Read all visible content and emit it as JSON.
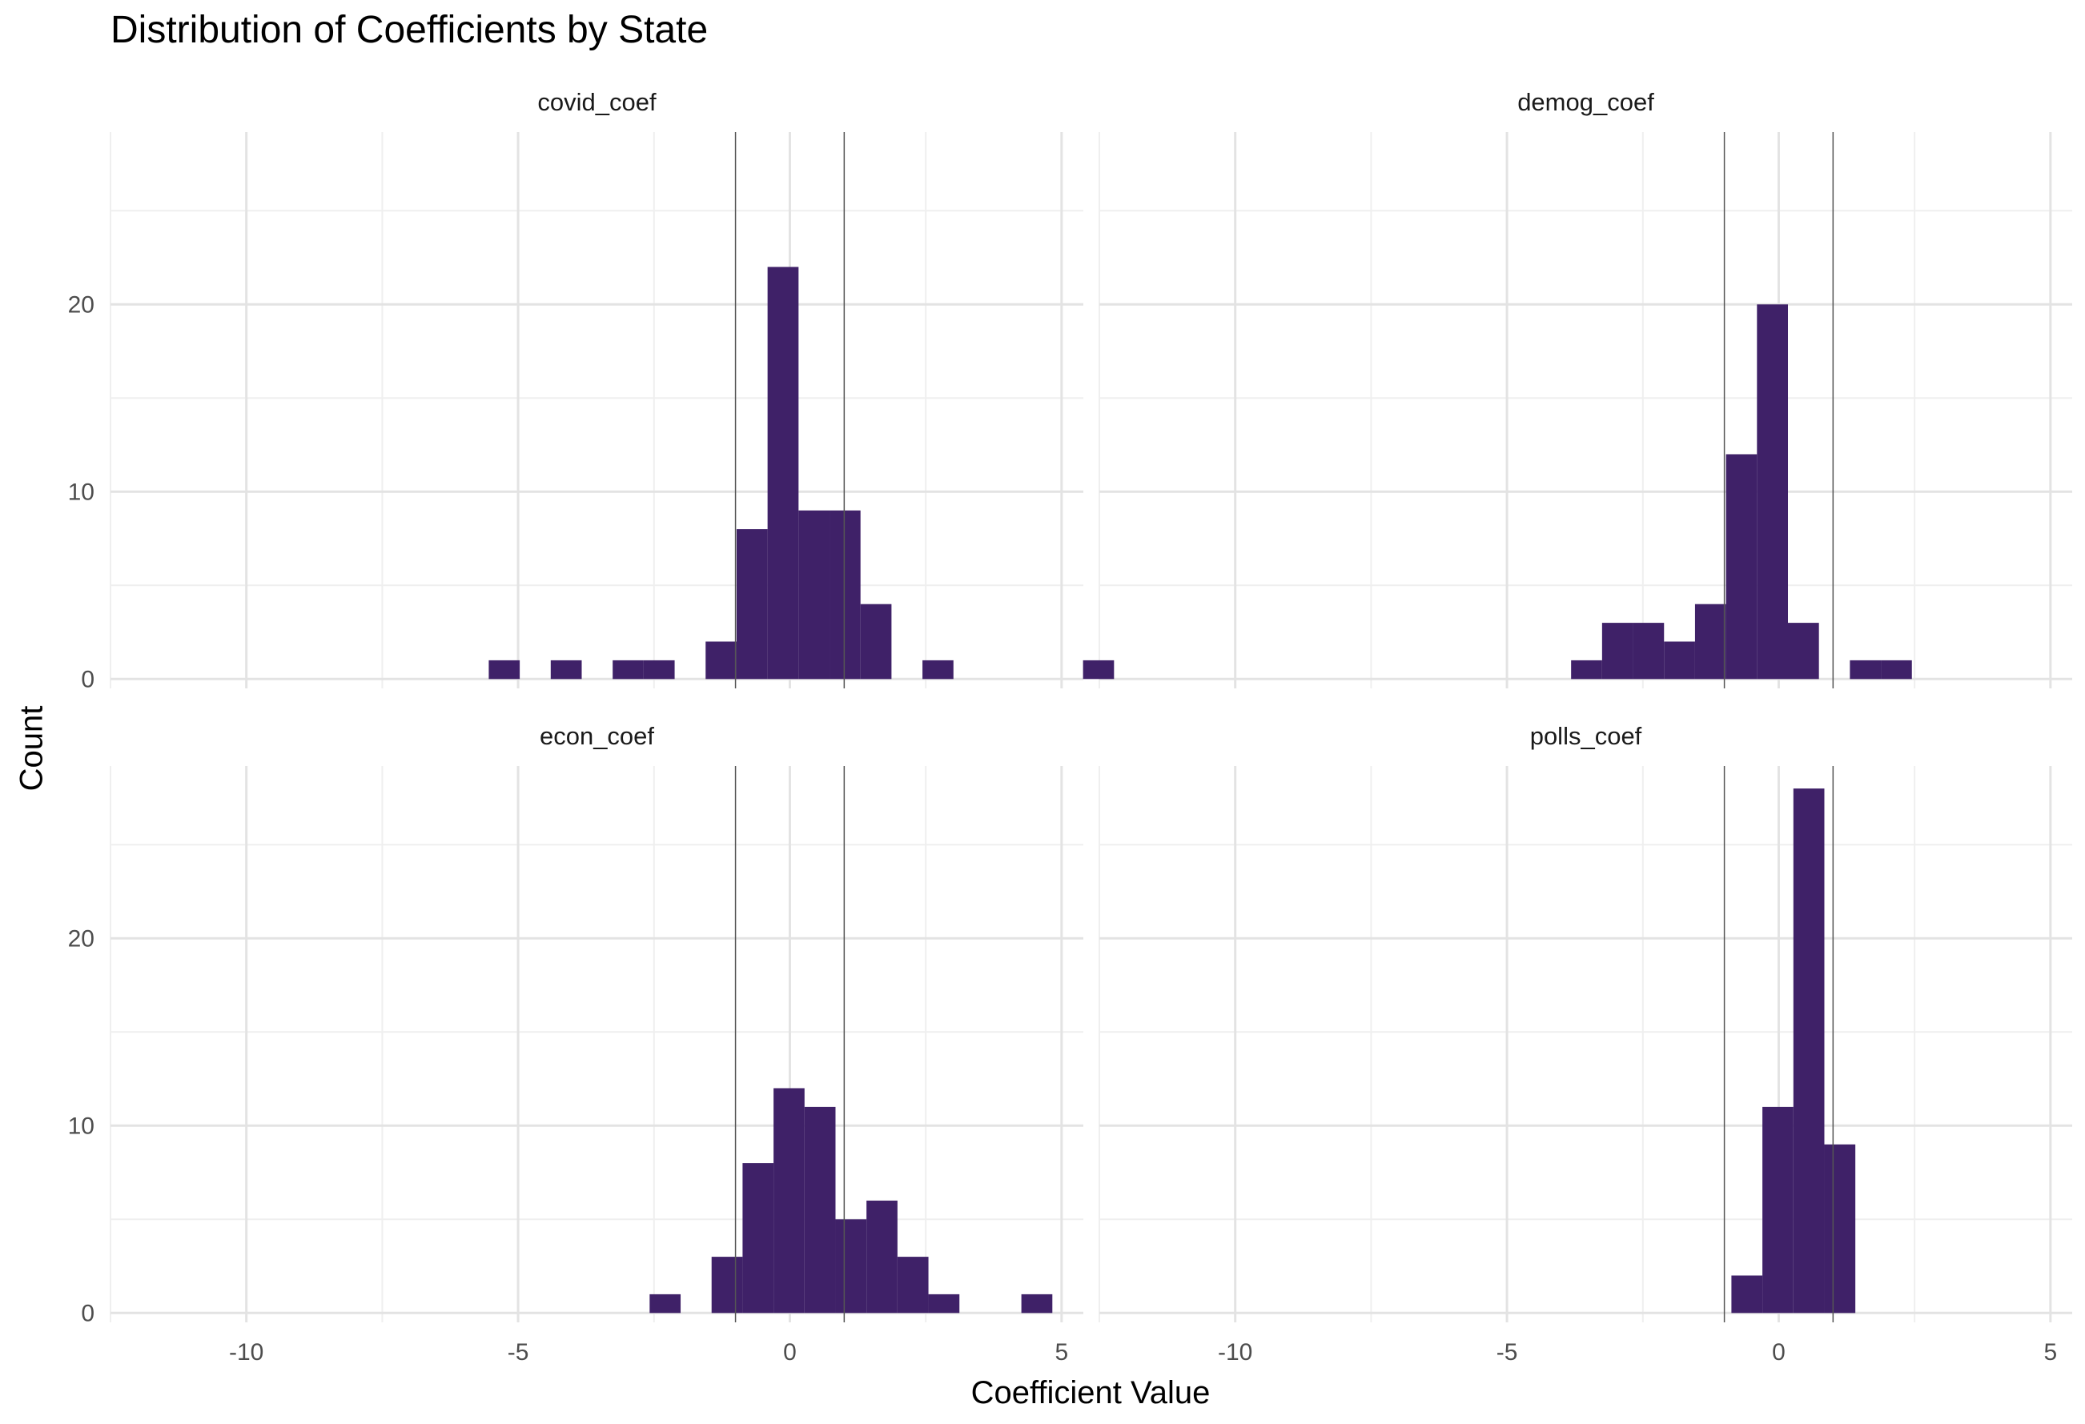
{
  "title": "Distribution of Coefficients by State",
  "xlabel": "Coefficient Value",
  "ylabel": "Count",
  "colors": {
    "bar": "#3f2168",
    "grid_major": "#e3e3e3",
    "grid_minor": "#efefef",
    "vline": "#555555"
  },
  "chart_data": {
    "type": "bar",
    "subtype": "histogram",
    "title": "Distribution of Coefficients by State",
    "xlabel": "Coefficient Value",
    "ylabel": "Count",
    "xlim": [
      -12.5,
      5.4
    ],
    "ylim": [
      -0.5,
      29.2
    ],
    "x_ticks": [
      -10,
      -5,
      0,
      5
    ],
    "y_ticks": [
      0,
      10,
      20
    ],
    "bin_width": 0.57,
    "vlines": [
      -1,
      1
    ],
    "grid": true,
    "legend": "none",
    "facets": [
      {
        "name": "covid_coef",
        "bins": [
          {
            "x0": -5.54,
            "x1": -4.97,
            "count": 1
          },
          {
            "x0": -4.4,
            "x1": -3.83,
            "count": 1
          },
          {
            "x0": -3.26,
            "x1": -2.69,
            "count": 1
          },
          {
            "x0": -2.69,
            "x1": -2.12,
            "count": 1
          },
          {
            "x0": -1.55,
            "x1": -0.98,
            "count": 2
          },
          {
            "x0": -0.98,
            "x1": -0.41,
            "count": 8
          },
          {
            "x0": -0.41,
            "x1": 0.16,
            "count": 22
          },
          {
            "x0": 0.16,
            "x1": 0.73,
            "count": 9
          },
          {
            "x0": 0.73,
            "x1": 1.3,
            "count": 9
          },
          {
            "x0": 1.3,
            "x1": 1.87,
            "count": 4
          },
          {
            "x0": 2.44,
            "x1": 3.01,
            "count": 1
          }
        ]
      },
      {
        "name": "demog_coef",
        "bins": [
          {
            "x0": -12.8,
            "x1": -12.23,
            "count": 1
          },
          {
            "x0": -3.82,
            "x1": -3.25,
            "count": 1
          },
          {
            "x0": -3.25,
            "x1": -2.68,
            "count": 3
          },
          {
            "x0": -2.68,
            "x1": -2.11,
            "count": 3
          },
          {
            "x0": -2.11,
            "x1": -1.54,
            "count": 2
          },
          {
            "x0": -1.54,
            "x1": -0.97,
            "count": 4
          },
          {
            "x0": -0.97,
            "x1": -0.4,
            "count": 12
          },
          {
            "x0": -0.4,
            "x1": 0.17,
            "count": 20
          },
          {
            "x0": 0.17,
            "x1": 0.74,
            "count": 3
          },
          {
            "x0": 1.31,
            "x1": 1.88,
            "count": 1
          },
          {
            "x0": 1.88,
            "x1": 2.45,
            "count": 1
          }
        ]
      },
      {
        "name": "econ_coef",
        "bins": [
          {
            "x0": -2.58,
            "x1": -2.01,
            "count": 1
          },
          {
            "x0": -1.44,
            "x1": -0.87,
            "count": 3
          },
          {
            "x0": -0.87,
            "x1": -0.3,
            "count": 8
          },
          {
            "x0": -0.3,
            "x1": 0.27,
            "count": 12
          },
          {
            "x0": 0.27,
            "x1": 0.84,
            "count": 11
          },
          {
            "x0": 0.84,
            "x1": 1.41,
            "count": 5
          },
          {
            "x0": 1.41,
            "x1": 1.98,
            "count": 6
          },
          {
            "x0": 1.98,
            "x1": 2.55,
            "count": 3
          },
          {
            "x0": 2.55,
            "x1": 3.12,
            "count": 1
          },
          {
            "x0": 4.26,
            "x1": 4.83,
            "count": 1
          }
        ]
      },
      {
        "name": "polls_coef",
        "bins": [
          {
            "x0": -0.87,
            "x1": -0.3,
            "count": 2
          },
          {
            "x0": -0.3,
            "x1": 0.27,
            "count": 11
          },
          {
            "x0": 0.27,
            "x1": 0.84,
            "count": 28
          },
          {
            "x0": 0.84,
            "x1": 1.41,
            "count": 9
          }
        ]
      }
    ]
  }
}
